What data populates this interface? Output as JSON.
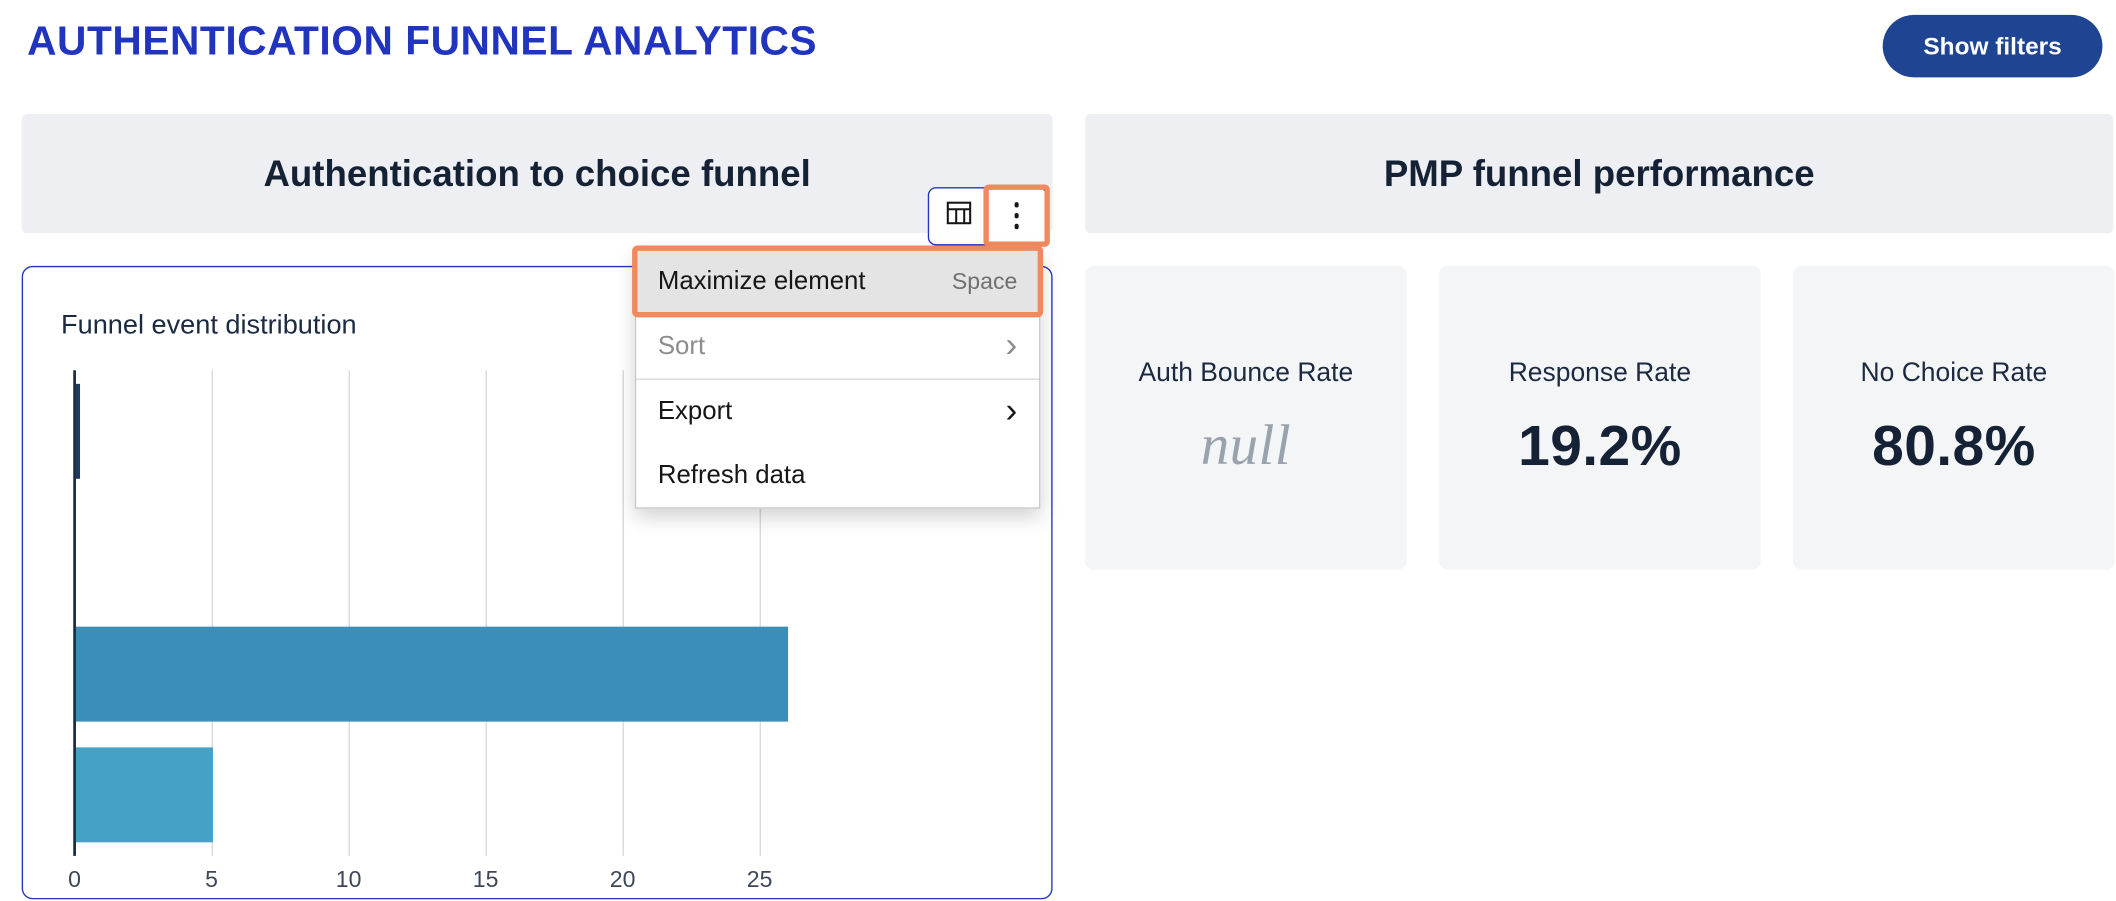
{
  "page": {
    "title": "AUTHENTICATION FUNNEL ANALYTICS",
    "show_filters_label": "Show filters"
  },
  "colors": {
    "accent": "#2134c0",
    "button": "#1f4492",
    "annotation": "#f08a5e",
    "header_bg": "#edeff3",
    "card_bg": "#f4f5f7"
  },
  "icons": {
    "chevron_right": "›"
  },
  "left_panel": {
    "header": "Authentication to choice funnel",
    "menu": {
      "items": [
        {
          "label": "Maximize element",
          "shortcut": "Space"
        },
        {
          "label": "Sort"
        },
        {
          "label": "Export"
        },
        {
          "label": "Refresh data"
        }
      ]
    }
  },
  "right_panel": {
    "header": "PMP funnel performance",
    "metrics": [
      {
        "label": "Auth Bounce Rate",
        "value": "null"
      },
      {
        "label": "Response Rate",
        "value": "19.2%"
      },
      {
        "label": "No Choice Rate",
        "value": "80.8%"
      }
    ]
  },
  "chart_data": {
    "type": "bar",
    "orientation": "horizontal",
    "title": "Funnel event distribution",
    "x_ticks": [
      0,
      5,
      10,
      15,
      20,
      25
    ],
    "xlim": [
      0,
      27
    ],
    "n_categories": 4,
    "grid": true,
    "bars": [
      {
        "category": 0,
        "value": 0.15,
        "color": "#1f3a60"
      },
      {
        "category": 2,
        "value": 26,
        "color": "#3a8fba"
      },
      {
        "category": 3,
        "value": 5,
        "color": "#45a2c6"
      }
    ]
  }
}
